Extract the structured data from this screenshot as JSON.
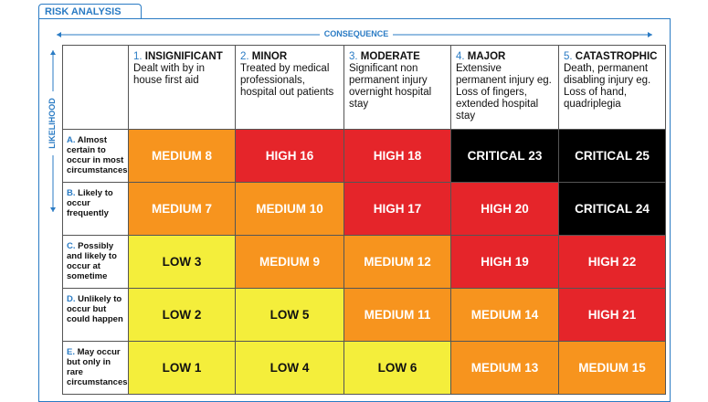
{
  "header": {
    "title": "RISK ANALYSIS"
  },
  "axes": {
    "consequence": "CONSEQUENCE",
    "likelihood": "LIKELIHOOD"
  },
  "levels": {
    "LOW": {
      "fill": "#f4ee3b",
      "text": "#111111"
    },
    "MEDIUM": {
      "fill": "#f7941e",
      "text": "#ffffff"
    },
    "HIGH": {
      "fill": "#e5252a",
      "text": "#ffffff"
    },
    "CRITICAL": {
      "fill": "#000000",
      "text": "#ffffff"
    }
  },
  "columns": [
    {
      "number": "1.",
      "title": "INSIGNIFICANT",
      "description": "Dealt with by in house first aid"
    },
    {
      "number": "2.",
      "title": "MINOR",
      "description": "Treated by medical professionals, hospital out patients"
    },
    {
      "number": "3.",
      "title": "MODERATE",
      "description": "Significant non permanent injury overnight hospital stay"
    },
    {
      "number": "4.",
      "title": "MAJOR",
      "description": "Extensive permanent injury  eg. Loss of fingers, extended hospital stay"
    },
    {
      "number": "5.",
      "title": "CATASTROPHIC",
      "description": "Death, permanent disabling injury eg. Loss of hand, quadriplegia"
    }
  ],
  "rows": [
    {
      "letter": "A.",
      "label": "Almost certain to occur in most circumstances",
      "cells": [
        {
          "level": "MEDIUM",
          "score": 8
        },
        {
          "level": "HIGH",
          "score": 16
        },
        {
          "level": "HIGH",
          "score": 18
        },
        {
          "level": "CRITICAL",
          "score": 23
        },
        {
          "level": "CRITICAL",
          "score": 25
        }
      ]
    },
    {
      "letter": "B.",
      "label": "Likely to occur frequently",
      "cells": [
        {
          "level": "MEDIUM",
          "score": 7
        },
        {
          "level": "MEDIUM",
          "score": 10
        },
        {
          "level": "HIGH",
          "score": 17
        },
        {
          "level": "HIGH",
          "score": 20
        },
        {
          "level": "CRITICAL",
          "score": 24
        }
      ]
    },
    {
      "letter": "C.",
      "label": "Possibly and likely to occur at sometime",
      "cells": [
        {
          "level": "LOW",
          "score": 3
        },
        {
          "level": "MEDIUM",
          "score": 9
        },
        {
          "level": "MEDIUM",
          "score": 12
        },
        {
          "level": "HIGH",
          "score": 19
        },
        {
          "level": "HIGH",
          "score": 22
        }
      ]
    },
    {
      "letter": "D.",
      "label": "Unlikely to occur but could happen",
      "cells": [
        {
          "level": "LOW",
          "score": 2
        },
        {
          "level": "LOW",
          "score": 5
        },
        {
          "level": "MEDIUM",
          "score": 11
        },
        {
          "level": "MEDIUM",
          "score": 14
        },
        {
          "level": "HIGH",
          "score": 21
        }
      ]
    },
    {
      "letter": "E.",
      "label": "May occur but only in rare circumstances",
      "cells": [
        {
          "level": "LOW",
          "score": 1
        },
        {
          "level": "LOW",
          "score": 4
        },
        {
          "level": "LOW",
          "score": 6
        },
        {
          "level": "MEDIUM",
          "score": 13
        },
        {
          "level": "MEDIUM",
          "score": 15
        }
      ]
    }
  ]
}
